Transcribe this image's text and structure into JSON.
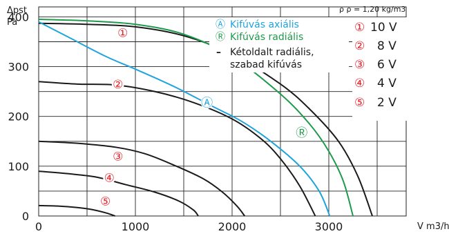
{
  "chart_data": {
    "type": "line",
    "title": "",
    "ylabel_line1": "Δpst",
    "ylabel_line2": "Pa",
    "xlabel": "V m3/h",
    "density_note": "ρ ρ = 1,20 kg/m3",
    "xlim": [
      0,
      3800
    ],
    "ylim": [
      0,
      420
    ],
    "xticks": [
      0,
      1000,
      2000,
      3000
    ],
    "yticks": [
      0,
      100,
      200,
      300,
      400
    ],
    "grid": true,
    "colors": {
      "axial": "#1fa3dc",
      "radial": "#1e9a4b",
      "black": "#1a1a1a"
    },
    "legend": [
      {
        "symbol": "Ⓐ",
        "label": "Kifúvás axiális",
        "color": "#1fa3dc"
      },
      {
        "symbol": "Ⓡ",
        "label": "Kifúvás radiális",
        "color": "#1e9a4b"
      },
      {
        "symbol": "–",
        "label": "Kétoldalt radiális,",
        "label2": "szabad kifúvás",
        "color": "#1a1a1a"
      }
    ],
    "voltages": [
      {
        "mark": "①",
        "label": "10 V"
      },
      {
        "mark": "②",
        "label": "8 V"
      },
      {
        "mark": "③",
        "label": "6 V"
      },
      {
        "mark": "④",
        "label": "4 V"
      },
      {
        "mark": "⑤",
        "label": "2 V"
      }
    ],
    "series": [
      {
        "id": "black-10v",
        "color": "#1a1a1a",
        "x": [
          0,
          500,
          1000,
          1500,
          2000,
          2500,
          2800,
          3100,
          3300,
          3450
        ],
        "y": [
          387,
          385,
          380,
          362,
          325,
          265,
          215,
          150,
          80,
          0
        ]
      },
      {
        "id": "radial-10v",
        "color": "#1e9a4b",
        "x": [
          0,
          500,
          1000,
          1500,
          2000,
          2500,
          2800,
          3000,
          3150,
          3250
        ],
        "y": [
          395,
          392,
          385,
          365,
          320,
          245,
          185,
          130,
          70,
          0
        ]
      },
      {
        "id": "axial-10v",
        "color": "#1fa3dc",
        "x": [
          0,
          300,
          700,
          1000,
          1400,
          1800,
          2100,
          2400,
          2700,
          2900,
          3010
        ],
        "y": [
          390,
          360,
          320,
          295,
          260,
          220,
          190,
          150,
          100,
          50,
          0
        ]
      },
      {
        "id": "black-8v",
        "color": "#1a1a1a",
        "x": [
          0,
          400,
          800,
          1200,
          1600,
          2000,
          2300,
          2500,
          2700,
          2860
        ],
        "y": [
          270,
          265,
          263,
          250,
          228,
          195,
          155,
          115,
          60,
          0
        ]
      },
      {
        "id": "black-6v",
        "color": "#1a1a1a",
        "x": [
          0,
          400,
          800,
          1100,
          1400,
          1700,
          1900,
          2050,
          2130
        ],
        "y": [
          150,
          146,
          138,
          125,
          102,
          75,
          48,
          20,
          0
        ]
      },
      {
        "id": "black-4v",
        "color": "#1a1a1a",
        "x": [
          0,
          300,
          600,
          900,
          1200,
          1450,
          1600,
          1650
        ],
        "y": [
          90,
          85,
          78,
          63,
          48,
          30,
          12,
          0
        ]
      },
      {
        "id": "black-2v",
        "color": "#1a1a1a",
        "x": [
          0,
          200,
          400,
          550,
          700,
          790
        ],
        "y": [
          21,
          20,
          17,
          13,
          6,
          0
        ]
      }
    ],
    "curve_labels": [
      {
        "text": "①",
        "x": 870,
        "y": 368,
        "color": "#e8202a"
      },
      {
        "text": "②",
        "x": 820,
        "y": 265,
        "color": "#e8202a"
      },
      {
        "text": "③",
        "x": 820,
        "y": 120,
        "color": "#e8202a"
      },
      {
        "text": "④",
        "x": 730,
        "y": 77,
        "color": "#e8202a"
      },
      {
        "text": "⑤",
        "x": 690,
        "y": 30,
        "color": "#e8202a"
      },
      {
        "text": "Ⓐ",
        "x": 1740,
        "y": 228,
        "color": "#1fa3dc"
      },
      {
        "text": "Ⓡ",
        "x": 2720,
        "y": 168,
        "color": "#1e9a4b"
      }
    ]
  }
}
